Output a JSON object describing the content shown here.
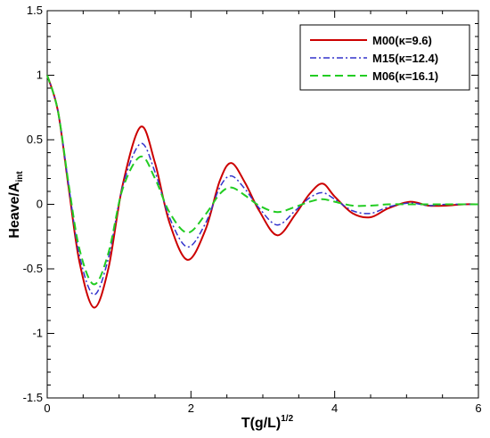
{
  "chart_data": {
    "type": "line",
    "xlabel": "T(g/L)",
    "xlabel_sup": "1/2",
    "ylabel": "Heave/A",
    "ylabel_sub": "int",
    "xlim": [
      0,
      6
    ],
    "ylim": [
      -1.5,
      1.5
    ],
    "xticks": [
      0,
      2,
      4,
      6
    ],
    "yticks": [
      -1.5,
      -1,
      -0.5,
      0,
      0.5,
      1,
      1.5
    ],
    "grid": false,
    "legend_position": "top-right",
    "series": [
      {
        "name": "M00(κ=9.6)",
        "color": "#cc0000",
        "dash": "solid",
        "x": [
          0,
          0.15,
          0.3,
          0.45,
          0.65,
          0.85,
          1.05,
          1.3,
          1.5,
          1.7,
          1.95,
          2.2,
          2.4,
          2.56,
          2.75,
          2.95,
          3.2,
          3.45,
          3.65,
          3.83,
          4.0,
          4.25,
          4.5,
          4.75,
          5.05,
          5.3,
          5.55,
          5.8,
          6.0
        ],
        "y": [
          1.0,
          0.72,
          0.12,
          -0.45,
          -0.8,
          -0.5,
          0.15,
          0.6,
          0.32,
          -0.14,
          -0.43,
          -0.2,
          0.18,
          0.32,
          0.17,
          -0.05,
          -0.24,
          -0.08,
          0.08,
          0.16,
          0.06,
          -0.07,
          -0.1,
          -0.03,
          0.02,
          -0.01,
          -0.01,
          0.0,
          0.0
        ]
      },
      {
        "name": "M15(κ=12.4)",
        "color": "#3333cc",
        "dash": "dashdot",
        "x": [
          0,
          0.15,
          0.3,
          0.45,
          0.65,
          0.85,
          1.05,
          1.3,
          1.5,
          1.7,
          1.95,
          2.2,
          2.4,
          2.56,
          2.75,
          2.95,
          3.2,
          3.45,
          3.65,
          3.83,
          4.0,
          4.25,
          4.5,
          4.75,
          5.05,
          5.3,
          5.55,
          5.8,
          6.0
        ],
        "y": [
          1.0,
          0.72,
          0.14,
          -0.4,
          -0.7,
          -0.42,
          0.14,
          0.47,
          0.25,
          -0.1,
          -0.33,
          -0.15,
          0.13,
          0.22,
          0.12,
          -0.03,
          -0.16,
          -0.05,
          0.05,
          0.09,
          0.04,
          -0.05,
          -0.07,
          -0.02,
          0.01,
          -0.01,
          0.0,
          0.0,
          0.0
        ]
      },
      {
        "name": "M06(κ=16.1)",
        "color": "#22cc22",
        "dash": "dashed",
        "x": [
          0,
          0.15,
          0.3,
          0.45,
          0.65,
          0.85,
          1.05,
          1.3,
          1.5,
          1.7,
          1.95,
          2.2,
          2.4,
          2.56,
          2.75,
          2.95,
          3.2,
          3.45,
          3.65,
          3.83,
          4.0,
          4.25,
          4.5,
          4.75,
          5.05,
          5.3,
          5.55,
          5.8,
          6.0
        ],
        "y": [
          1.0,
          0.72,
          0.15,
          -0.35,
          -0.62,
          -0.38,
          0.12,
          0.37,
          0.2,
          -0.06,
          -0.22,
          -0.08,
          0.08,
          0.13,
          0.07,
          -0.01,
          -0.06,
          -0.02,
          0.02,
          0.04,
          0.02,
          -0.01,
          -0.01,
          0.0,
          0.0,
          0.0,
          0.0,
          0.0,
          0.0
        ]
      }
    ]
  }
}
